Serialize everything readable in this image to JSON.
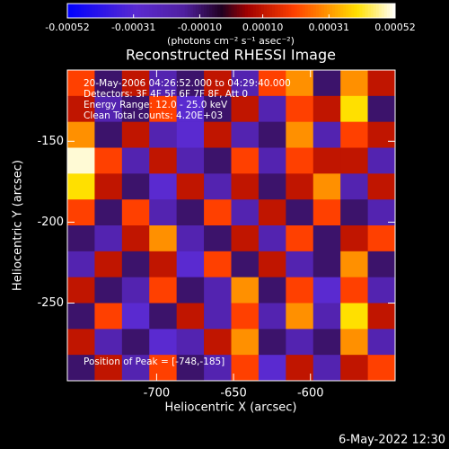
{
  "chart_data": {
    "type": "heatmap",
    "title": "Reconstructed RHESSI Image",
    "xlabel": "Heliocentric X (arcsec)",
    "ylabel": "Heliocentric Y (arcsec)",
    "colorbar_label": "(photons cm⁻² s⁻¹ asec⁻²)",
    "annotations": [
      "20-May-2006 04:26:52.000 to 04:29:40.000",
      "Detectors: 3F 4F 5F 6F 7F 8F, Att 0",
      "Energy Range: 12.0 - 25.0 keV",
      "Clean    Total counts: 4.20E+03",
      "Position of Peak = [-748,-185]"
    ],
    "footer": "6-May-2022 12:30",
    "xlim": [
      -758,
      -545
    ],
    "ylim": [
      -298,
      -106
    ],
    "xticks": [
      -700,
      -650,
      -600
    ],
    "yticks": [
      -250,
      -200,
      -150
    ],
    "clim": [
      -0.00052,
      0.00052
    ],
    "cticks": [
      -0.00052,
      -0.00031,
      {
        "value": -0.0001,
        "label": "-0.00010"
      },
      {
        "value": 0.0001,
        "label": "0.00010"
      },
      0.00031,
      0.00052
    ],
    "colorscale": [
      [
        -0.00052,
        "#0000ff"
      ],
      [
        -0.0003,
        "#5a2ad0"
      ],
      [
        -0.00015,
        "#5020a0"
      ],
      [
        -3e-05,
        "#200020"
      ],
      [
        5e-05,
        "#a00000"
      ],
      [
        0.0002,
        "#ff4000"
      ],
      [
        0.0003,
        "#ff9000"
      ],
      [
        0.0004,
        "#ffe000"
      ],
      [
        0.00052,
        "#ffffff"
      ]
    ],
    "z": [
      [
        0.0002,
        -0.0001,
        0.0001,
        -0.0002,
        -0.0001,
        0.0001,
        -0.0002,
        0.0002,
        0.0003,
        -0.0001,
        0.0003,
        0.0001
      ],
      [
        0.0001,
        -0.0002,
        -0.0001,
        0.0002,
        -0.0003,
        -0.0001,
        0.0001,
        -0.0002,
        0.0002,
        0.0001,
        0.0004,
        -0.0001
      ],
      [
        0.0003,
        -0.0001,
        0.0001,
        -0.0002,
        -0.0003,
        0.0001,
        -0.0002,
        -0.0001,
        0.0003,
        -0.0002,
        0.0002,
        0.0001
      ],
      [
        0.0005,
        0.0002,
        -0.0002,
        0.0001,
        -0.0002,
        -0.0001,
        0.0002,
        -0.0002,
        0.0002,
        0.0001,
        0.0001,
        -0.0002
      ],
      [
        0.0004,
        0.0001,
        -0.0001,
        -0.0003,
        0.0001,
        -0.0002,
        0.0001,
        -0.0001,
        0.0001,
        0.0003,
        -0.0002,
        0.0001
      ],
      [
        0.0002,
        -0.0001,
        0.0002,
        -0.0002,
        -0.0001,
        0.0002,
        -0.0002,
        0.0001,
        -0.0001,
        0.0002,
        -0.0001,
        -0.0002
      ],
      [
        -0.0001,
        -0.0002,
        0.0001,
        0.0003,
        -0.0002,
        -0.0001,
        0.0001,
        -0.0002,
        0.0002,
        -0.0001,
        0.0001,
        0.0002
      ],
      [
        -0.0002,
        0.0001,
        -0.0001,
        0.0001,
        -0.0003,
        0.0002,
        -0.0001,
        0.0001,
        -0.0002,
        -0.0001,
        0.0003,
        -0.0001
      ],
      [
        0.0001,
        -0.0001,
        -0.0002,
        0.0002,
        -0.0001,
        -0.0002,
        0.0003,
        -0.0001,
        0.0002,
        -0.0003,
        0.0002,
        -0.0002
      ],
      [
        -0.0001,
        0.0002,
        -0.0003,
        -0.0001,
        0.0001,
        -0.0002,
        0.0002,
        -0.0002,
        0.0003,
        -0.0002,
        0.0004,
        0.0001
      ],
      [
        0.0001,
        -0.0002,
        -0.0001,
        -0.0003,
        -0.0002,
        0.0001,
        0.0003,
        -0.0001,
        -0.0002,
        -0.0001,
        0.0003,
        -0.0002
      ],
      [
        -0.0001,
        0.0001,
        -0.0002,
        0.0002,
        -0.0001,
        -0.0002,
        0.0002,
        -0.0003,
        0.0001,
        -0.0002,
        0.0001,
        0.0002
      ]
    ]
  }
}
